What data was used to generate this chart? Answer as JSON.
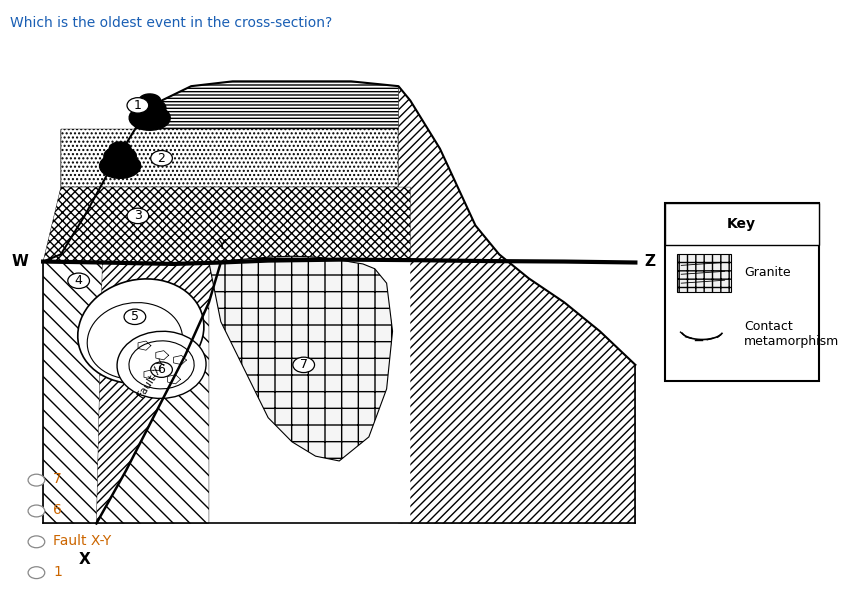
{
  "title": "Which is the oldest event in the cross-section?",
  "title_color": "#1a5fb4",
  "title_fontsize": 10,
  "options": [
    "7",
    "6",
    "Fault X-Y",
    "1"
  ],
  "option_color": "#cc6600",
  "key_title": "Key",
  "key_granite": "Granite",
  "key_contact": "Contact\nmetamorphism",
  "background_color": "#ffffff",
  "L": 0.05,
  "R": 0.76,
  "B": 0.12,
  "T": 0.93
}
